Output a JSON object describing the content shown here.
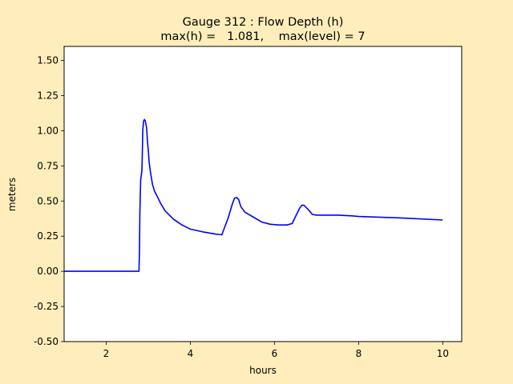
{
  "chart_data": {
    "type": "line",
    "title_line1": "Gauge 312 : Flow Depth (h)",
    "title_line2": "max(h) =   1.081,    max(level) = 7",
    "xlabel": "hours",
    "ylabel": "meters",
    "xlim": [
      1.0,
      10.45
    ],
    "ylim": [
      -0.5,
      1.6
    ],
    "xticks": [
      2,
      4,
      6,
      8,
      10
    ],
    "yticks": [
      -0.5,
      -0.25,
      0.0,
      0.25,
      0.5,
      0.75,
      1.0,
      1.25,
      1.5
    ],
    "grid": false,
    "series": [
      {
        "color": "#0000ff",
        "x": [
          1.0,
          2.78,
          2.79,
          2.8,
          2.82,
          2.85,
          2.87,
          2.89,
          2.91,
          2.93,
          2.96,
          2.98,
          3.0,
          3.02,
          3.05,
          3.1,
          3.15,
          3.2,
          3.3,
          3.4,
          3.6,
          3.8,
          4.0,
          4.3,
          4.6,
          4.75,
          4.8,
          4.9,
          5.0,
          5.05,
          5.1,
          5.15,
          5.2,
          5.3,
          5.5,
          5.7,
          5.9,
          6.1,
          6.3,
          6.42,
          6.5,
          6.6,
          6.65,
          6.7,
          6.8,
          6.9,
          7.0,
          7.2,
          7.5,
          7.8,
          8.0,
          9.0,
          10.0
        ],
        "y": [
          0.0,
          0.0,
          0.15,
          0.42,
          0.65,
          0.72,
          1.01,
          1.07,
          1.08,
          1.07,
          1.02,
          0.93,
          0.86,
          0.78,
          0.71,
          0.62,
          0.57,
          0.54,
          0.48,
          0.43,
          0.37,
          0.33,
          0.3,
          0.28,
          0.265,
          0.26,
          0.3,
          0.38,
          0.48,
          0.52,
          0.525,
          0.51,
          0.46,
          0.42,
          0.385,
          0.35,
          0.335,
          0.33,
          0.33,
          0.34,
          0.39,
          0.45,
          0.47,
          0.47,
          0.44,
          0.405,
          0.4,
          0.4,
          0.4,
          0.395,
          0.39,
          0.38,
          0.365
        ]
      }
    ]
  }
}
